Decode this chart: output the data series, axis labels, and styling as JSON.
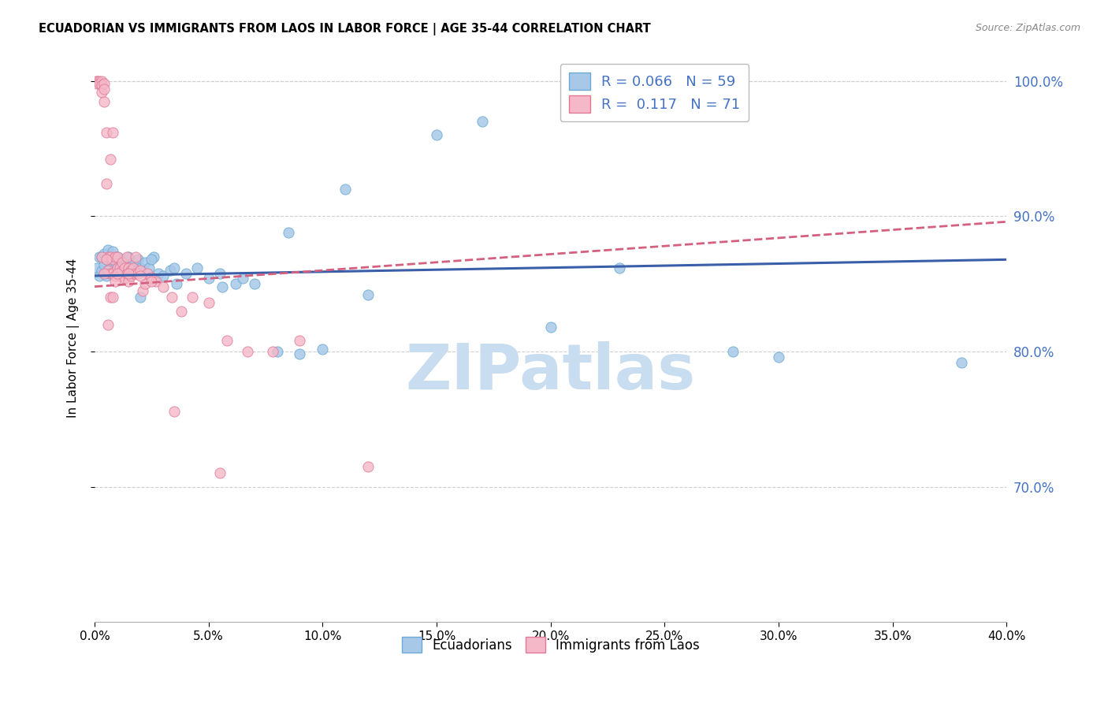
{
  "title": "ECUADORIAN VS IMMIGRANTS FROM LAOS IN LABOR FORCE | AGE 35-44 CORRELATION CHART",
  "source": "Source: ZipAtlas.com",
  "ylabel": "In Labor Force | Age 35-44",
  "x_min": 0.0,
  "x_max": 0.4,
  "y_min": 0.6,
  "y_max": 1.02,
  "watermark": "ZIPatlas",
  "blue_R": 0.066,
  "blue_N": 59,
  "pink_R": 0.117,
  "pink_N": 71,
  "blue_color": "#a8c8e8",
  "blue_edge": "#6aaad4",
  "pink_color": "#f4b8c8",
  "pink_edge": "#e07898",
  "blue_line_color": "#3a5fa8",
  "pink_line_color": "#d46080",
  "text_blue": "#4472c4",
  "grid_color": "#d0d0d0",
  "background": "#ffffff",
  "watermark_color": "#c8ddf0",
  "blue_x": [
    0.001,
    0.002,
    0.002,
    0.003,
    0.003,
    0.004,
    0.004,
    0.005,
    0.005,
    0.006,
    0.006,
    0.007,
    0.007,
    0.008,
    0.008,
    0.009,
    0.01,
    0.01,
    0.011,
    0.012,
    0.013,
    0.014,
    0.015,
    0.016,
    0.017,
    0.018,
    0.019,
    0.02,
    0.022,
    0.024,
    0.026,
    0.028,
    0.03,
    0.033,
    0.036,
    0.04,
    0.045,
    0.05,
    0.056,
    0.062,
    0.07,
    0.08,
    0.09,
    0.1,
    0.12,
    0.15,
    0.17,
    0.2,
    0.23,
    0.28,
    0.3,
    0.02,
    0.025,
    0.035,
    0.055,
    0.065,
    0.085,
    0.11,
    0.38
  ],
  "blue_y": [
    0.862,
    0.87,
    0.856,
    0.87,
    0.86,
    0.864,
    0.872,
    0.868,
    0.856,
    0.875,
    0.86,
    0.862,
    0.858,
    0.868,
    0.874,
    0.862,
    0.862,
    0.87,
    0.866,
    0.868,
    0.858,
    0.864,
    0.87,
    0.862,
    0.866,
    0.86,
    0.868,
    0.862,
    0.866,
    0.862,
    0.87,
    0.858,
    0.856,
    0.86,
    0.85,
    0.858,
    0.862,
    0.854,
    0.848,
    0.85,
    0.85,
    0.8,
    0.798,
    0.802,
    0.842,
    0.96,
    0.97,
    0.818,
    0.862,
    0.8,
    0.796,
    0.84,
    0.868,
    0.862,
    0.858,
    0.854,
    0.888,
    0.92,
    0.792
  ],
  "pink_x": [
    0.001,
    0.001,
    0.001,
    0.002,
    0.002,
    0.003,
    0.003,
    0.003,
    0.004,
    0.004,
    0.004,
    0.005,
    0.005,
    0.006,
    0.006,
    0.007,
    0.007,
    0.007,
    0.008,
    0.008,
    0.008,
    0.009,
    0.009,
    0.01,
    0.01,
    0.011,
    0.011,
    0.012,
    0.012,
    0.013,
    0.013,
    0.014,
    0.014,
    0.015,
    0.015,
    0.016,
    0.016,
    0.017,
    0.017,
    0.018,
    0.018,
    0.019,
    0.02,
    0.021,
    0.022,
    0.023,
    0.025,
    0.027,
    0.03,
    0.034,
    0.038,
    0.043,
    0.05,
    0.058,
    0.067,
    0.078,
    0.09,
    0.003,
    0.004,
    0.005,
    0.006,
    0.007,
    0.008,
    0.009,
    0.01,
    0.015,
    0.02,
    0.025,
    0.035,
    0.055,
    0.12
  ],
  "pink_y": [
    1.0,
    1.0,
    0.998,
    1.0,
    0.998,
    1.0,
    0.997,
    0.992,
    0.998,
    0.994,
    0.985,
    0.924,
    0.962,
    0.87,
    0.86,
    0.87,
    0.858,
    0.942,
    0.868,
    0.858,
    0.962,
    0.87,
    0.856,
    0.862,
    0.87,
    0.862,
    0.856,
    0.86,
    0.866,
    0.854,
    0.862,
    0.87,
    0.858,
    0.862,
    0.852,
    0.86,
    0.856,
    0.858,
    0.862,
    0.87,
    0.858,
    0.858,
    0.86,
    0.845,
    0.85,
    0.858,
    0.855,
    0.852,
    0.848,
    0.84,
    0.83,
    0.84,
    0.836,
    0.808,
    0.8,
    0.8,
    0.808,
    0.87,
    0.858,
    0.868,
    0.82,
    0.84,
    0.84,
    0.852,
    0.858,
    0.858,
    0.856,
    0.852,
    0.756,
    0.71,
    0.715
  ]
}
